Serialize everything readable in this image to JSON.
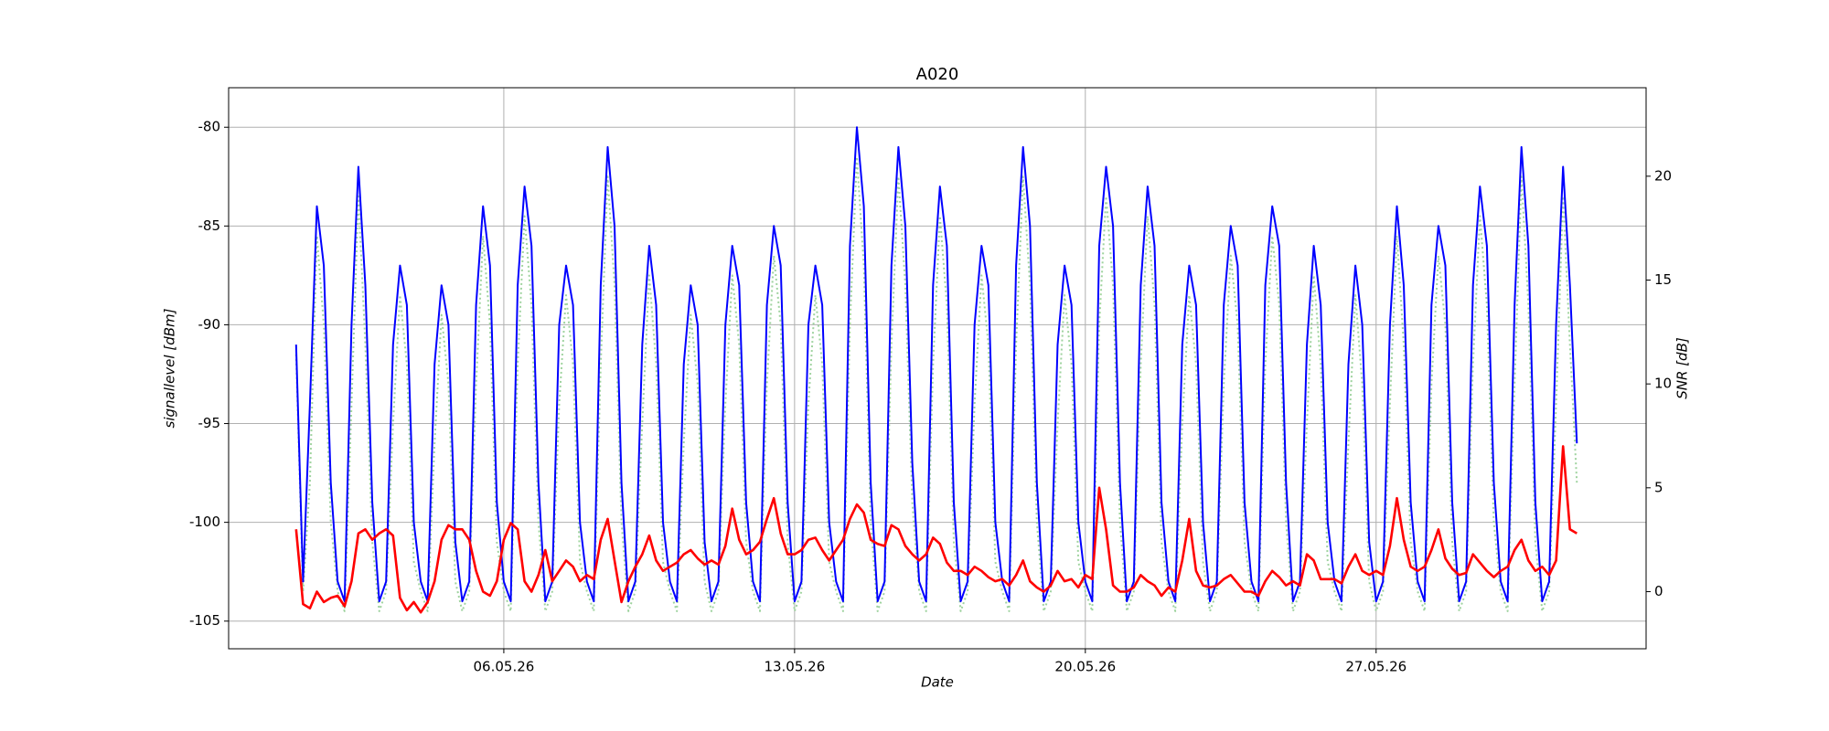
{
  "chart_data": {
    "type": "line",
    "title": "A020",
    "x_label": "Date",
    "y_label": "signallevel [dBm]",
    "y2_label": "SNR [dB]",
    "x": [
      "2026-05-01T00:00",
      "2026-05-01T04:00",
      "2026-05-01T08:00",
      "2026-05-01T12:00",
      "2026-05-01T16:00",
      "2026-05-01T20:00",
      "2026-05-02T00:00",
      "2026-05-02T04:00",
      "2026-05-02T08:00",
      "2026-05-02T12:00",
      "2026-05-02T16:00",
      "2026-05-02T20:00",
      "2026-05-03T00:00",
      "2026-05-03T04:00",
      "2026-05-03T08:00",
      "2026-05-03T12:00",
      "2026-05-03T16:00",
      "2026-05-03T20:00",
      "2026-05-04T00:00",
      "2026-05-04T04:00",
      "2026-05-04T08:00",
      "2026-05-04T12:00",
      "2026-05-04T16:00",
      "2026-05-04T20:00",
      "2026-05-05T00:00",
      "2026-05-05T04:00",
      "2026-05-05T08:00",
      "2026-05-05T12:00",
      "2026-05-05T16:00",
      "2026-05-05T20:00",
      "2026-05-06T00:00",
      "2026-05-06T04:00",
      "2026-05-06T08:00",
      "2026-05-06T12:00",
      "2026-05-06T16:00",
      "2026-05-06T20:00",
      "2026-05-07T00:00",
      "2026-05-07T04:00",
      "2026-05-07T08:00",
      "2026-05-07T12:00",
      "2026-05-07T16:00",
      "2026-05-07T20:00",
      "2026-05-08T00:00",
      "2026-05-08T04:00",
      "2026-05-08T08:00",
      "2026-05-08T12:00",
      "2026-05-08T16:00",
      "2026-05-08T20:00",
      "2026-05-09T00:00",
      "2026-05-09T04:00",
      "2026-05-09T08:00",
      "2026-05-09T12:00",
      "2026-05-09T16:00",
      "2026-05-09T20:00",
      "2026-05-10T00:00",
      "2026-05-10T04:00",
      "2026-05-10T08:00",
      "2026-05-10T12:00",
      "2026-05-10T16:00",
      "2026-05-10T20:00",
      "2026-05-11T00:00",
      "2026-05-11T04:00",
      "2026-05-11T08:00",
      "2026-05-11T12:00",
      "2026-05-11T16:00",
      "2026-05-11T20:00",
      "2026-05-12T00:00",
      "2026-05-12T04:00",
      "2026-05-12T08:00",
      "2026-05-12T12:00",
      "2026-05-12T16:00",
      "2026-05-12T20:00",
      "2026-05-13T00:00",
      "2026-05-13T04:00",
      "2026-05-13T08:00",
      "2026-05-13T12:00",
      "2026-05-13T16:00",
      "2026-05-13T20:00",
      "2026-05-14T00:00",
      "2026-05-14T04:00",
      "2026-05-14T08:00",
      "2026-05-14T12:00",
      "2026-05-14T16:00",
      "2026-05-14T20:00",
      "2026-05-15T00:00",
      "2026-05-15T04:00",
      "2026-05-15T08:00",
      "2026-05-15T12:00",
      "2026-05-15T16:00",
      "2026-05-15T20:00",
      "2026-05-16T00:00",
      "2026-05-16T04:00",
      "2026-05-16T08:00",
      "2026-05-16T12:00",
      "2026-05-16T16:00",
      "2026-05-16T20:00",
      "2026-05-17T00:00",
      "2026-05-17T04:00",
      "2026-05-17T08:00",
      "2026-05-17T12:00",
      "2026-05-17T16:00",
      "2026-05-17T20:00",
      "2026-05-18T00:00",
      "2026-05-18T04:00",
      "2026-05-18T08:00",
      "2026-05-18T12:00",
      "2026-05-18T16:00",
      "2026-05-18T20:00",
      "2026-05-19T00:00",
      "2026-05-19T04:00",
      "2026-05-19T08:00",
      "2026-05-19T12:00",
      "2026-05-19T16:00",
      "2026-05-19T20:00",
      "2026-05-20T00:00",
      "2026-05-20T04:00",
      "2026-05-20T08:00",
      "2026-05-20T12:00",
      "2026-05-20T16:00",
      "2026-05-20T20:00",
      "2026-05-21T00:00",
      "2026-05-21T04:00",
      "2026-05-21T08:00",
      "2026-05-21T12:00",
      "2026-05-21T16:00",
      "2026-05-21T20:00",
      "2026-05-22T00:00",
      "2026-05-22T04:00",
      "2026-05-22T08:00",
      "2026-05-22T12:00",
      "2026-05-22T16:00",
      "2026-05-22T20:00",
      "2026-05-23T00:00",
      "2026-05-23T04:00",
      "2026-05-23T08:00",
      "2026-05-23T12:00",
      "2026-05-23T16:00",
      "2026-05-23T20:00",
      "2026-05-24T00:00",
      "2026-05-24T04:00",
      "2026-05-24T08:00",
      "2026-05-24T12:00",
      "2026-05-24T16:00",
      "2026-05-24T20:00",
      "2026-05-25T00:00",
      "2026-05-25T04:00",
      "2026-05-25T08:00",
      "2026-05-25T12:00",
      "2026-05-25T16:00",
      "2026-05-25T20:00",
      "2026-05-26T00:00",
      "2026-05-26T04:00",
      "2026-05-26T08:00",
      "2026-05-26T12:00",
      "2026-05-26T16:00",
      "2026-05-26T20:00",
      "2026-05-27T00:00",
      "2026-05-27T04:00",
      "2026-05-27T08:00",
      "2026-05-27T12:00",
      "2026-05-27T16:00",
      "2026-05-27T20:00",
      "2026-05-28T00:00",
      "2026-05-28T04:00",
      "2026-05-28T08:00",
      "2026-05-28T12:00",
      "2026-05-28T16:00",
      "2026-05-28T20:00",
      "2026-05-29T00:00",
      "2026-05-29T04:00",
      "2026-05-29T08:00",
      "2026-05-29T12:00",
      "2026-05-29T16:00",
      "2026-05-29T20:00",
      "2026-05-30T00:00",
      "2026-05-30T04:00",
      "2026-05-30T08:00",
      "2026-05-30T12:00",
      "2026-05-30T16:00",
      "2026-05-30T20:00",
      "2026-05-31T00:00",
      "2026-05-31T04:00",
      "2026-05-31T08:00",
      "2026-05-31T12:00",
      "2026-05-31T16:00",
      "2026-05-31T20:00"
    ],
    "series": [
      {
        "color": "#9fd39f",
        "linestyle": "dotted",
        "values": [
          -91.5,
          -103.5,
          -98,
          -85.5,
          -90,
          -100,
          -103.5,
          -104.5,
          -94,
          -83.5,
          -91,
          -101,
          -104.5,
          -103.5,
          -95,
          -88.5,
          -92,
          -102,
          -103.5,
          -104.5,
          -96,
          -89.5,
          -93,
          -103,
          -104.5,
          -103.5,
          -93,
          -85.5,
          -90,
          -101,
          -103.5,
          -104.5,
          -92,
          -84.5,
          -89,
          -100,
          -104.5,
          -103.5,
          -94,
          -88.5,
          -92,
          -102,
          -103.5,
          -104.5,
          -92,
          -82.5,
          -88,
          -100,
          -104.5,
          -103.5,
          -95,
          -87.5,
          -92,
          -102,
          -103.5,
          -104.5,
          -96,
          -89.5,
          -93,
          -103,
          -104.5,
          -103.5,
          -94,
          -87.5,
          -91,
          -101,
          -103.5,
          -104.5,
          -93,
          -86.5,
          -90,
          -101,
          -104.5,
          -103.5,
          -94,
          -88.5,
          -92,
          -102,
          -103.5,
          -104.5,
          -90,
          -81.5,
          -87,
          -100,
          -104.5,
          -103.5,
          -91,
          -82.5,
          -88,
          -99,
          -103.5,
          -104.5,
          -92,
          -84.5,
          -89,
          -101,
          -104.5,
          -103.5,
          -94,
          -87.5,
          -91,
          -102,
          -103.5,
          -104.5,
          -91,
          -82.5,
          -88,
          -100,
          -104.5,
          -103.5,
          -95,
          -88.5,
          -92,
          -102,
          -103.5,
          -104.5,
          -90,
          -83.5,
          -88,
          -100,
          -104.5,
          -103.5,
          -92,
          -84.5,
          -89,
          -101,
          -103.5,
          -104.5,
          -95,
          -88.5,
          -92,
          -102,
          -104.5,
          -103.5,
          -93,
          -86.5,
          -90,
          -101,
          -103.5,
          -104.5,
          -92,
          -85.5,
          -89,
          -100,
          -104.5,
          -103.5,
          -95,
          -87.5,
          -92,
          -102,
          -103.5,
          -104.5,
          -96,
          -88.5,
          -93,
          -103,
          -104.5,
          -103.5,
          -94,
          -85.5,
          -91,
          -101,
          -103.5,
          -104.5,
          -93,
          -86.5,
          -90,
          -101,
          -104.5,
          -103.5,
          -92,
          -84.5,
          -89,
          -100,
          -103.5,
          -104.5,
          -93,
          -82.5,
          -89,
          -101,
          -104.5,
          -103.5,
          -94,
          -83.5,
          -91,
          -98
        ]
      },
      {
        "color": "#0000ff",
        "values": [
          -91,
          -103,
          -94,
          -84,
          -87,
          -98,
          -103,
          -104,
          -90,
          -82,
          -88,
          -99,
          -104,
          -103,
          -91,
          -87,
          -89,
          -100,
          -103,
          -104,
          -92,
          -88,
          -90,
          -101,
          -104,
          -103,
          -89,
          -84,
          -87,
          -99,
          -103,
          -104,
          -88,
          -83,
          -86,
          -98,
          -104,
          -103,
          -90,
          -87,
          -89,
          -100,
          -103,
          -104,
          -88,
          -81,
          -85,
          -98,
          -104,
          -103,
          -91,
          -86,
          -89,
          -100,
          -103,
          -104,
          -92,
          -88,
          -90,
          -101,
          -104,
          -103,
          -90,
          -86,
          -88,
          -99,
          -103,
          -104,
          -89,
          -85,
          -87,
          -99,
          -104,
          -103,
          -90,
          -87,
          -89,
          -100,
          -103,
          -104,
          -86,
          -80,
          -84,
          -98,
          -104,
          -103,
          -87,
          -81,
          -85,
          -97,
          -103,
          -104,
          -88,
          -83,
          -86,
          -99,
          -104,
          -103,
          -90,
          -86,
          -88,
          -100,
          -103,
          -104,
          -87,
          -81,
          -85,
          -98,
          -104,
          -103,
          -91,
          -87,
          -89,
          -100,
          -103,
          -104,
          -86,
          -82,
          -85,
          -98,
          -104,
          -103,
          -88,
          -83,
          -86,
          -99,
          -103,
          -104,
          -91,
          -87,
          -89,
          -100,
          -104,
          -103,
          -89,
          -85,
          -87,
          -99,
          -103,
          -104,
          -88,
          -84,
          -86,
          -98,
          -104,
          -103,
          -91,
          -86,
          -89,
          -100,
          -103,
          -104,
          -92,
          -87,
          -90,
          -101,
          -104,
          -103,
          -90,
          -84,
          -88,
          -99,
          -103,
          -104,
          -89,
          -85,
          -87,
          -99,
          -104,
          -103,
          -88,
          -83,
          -86,
          -98,
          -103,
          -104,
          -89,
          -81,
          -86,
          -99,
          -104,
          -103,
          -90,
          -82,
          -88,
          -96
        ]
      },
      {
        "color": "#ff0000",
        "axis": "y2",
        "values": [
          3,
          -0.6,
          -0.8,
          0,
          -0.5,
          -0.3,
          -0.2,
          -0.7,
          0.5,
          2.8,
          3,
          2.5,
          2.8,
          3,
          2.7,
          -0.3,
          -0.9,
          -0.5,
          -1,
          -0.5,
          0.5,
          2.5,
          3.2,
          3,
          3,
          2.5,
          1,
          0,
          -0.2,
          0.5,
          2.5,
          3.3,
          3,
          0.5,
          0,
          0.8,
          2,
          0.5,
          1,
          1.5,
          1.2,
          0.5,
          0.8,
          0.6,
          2.5,
          3.5,
          1.5,
          -0.5,
          0.5,
          1.2,
          1.8,
          2.7,
          1.5,
          1,
          1.2,
          1.4,
          1.8,
          2,
          1.6,
          1.3,
          1.5,
          1.3,
          2.2,
          4,
          2.5,
          1.8,
          2,
          2.4,
          3.5,
          4.5,
          2.8,
          1.8,
          1.8,
          2,
          2.5,
          2.6,
          2,
          1.5,
          2,
          2.5,
          3.5,
          4.2,
          3.8,
          2.5,
          2.3,
          2.2,
          3.2,
          3,
          2.2,
          1.8,
          1.5,
          1.8,
          2.6,
          2.3,
          1.4,
          1,
          1,
          0.8,
          1.2,
          1,
          0.7,
          0.5,
          0.6,
          0.3,
          0.8,
          1.5,
          0.5,
          0.2,
          0,
          0.3,
          1,
          0.5,
          0.6,
          0.2,
          0.8,
          0.6,
          5,
          3,
          0.3,
          0,
          0,
          0.2,
          0.8,
          0.5,
          0.3,
          -0.2,
          0.2,
          0,
          1.5,
          3.5,
          1,
          0.3,
          0.2,
          0.3,
          0.6,
          0.8,
          0.4,
          0,
          0,
          -0.2,
          0.5,
          1,
          0.7,
          0.3,
          0.5,
          0.3,
          1.8,
          1.5,
          0.6,
          0.6,
          0.6,
          0.4,
          1.2,
          1.8,
          1,
          0.8,
          1,
          0.8,
          2.2,
          4.5,
          2.5,
          1.2,
          1,
          1.2,
          2,
          3,
          1.6,
          1.1,
          0.8,
          0.9,
          1.8,
          1.4,
          1,
          0.7,
          1,
          1.2,
          2,
          2.5,
          1.5,
          1,
          1.2,
          0.8,
          1.5,
          7,
          3,
          2.8
        ]
      }
    ],
    "xlim": [
      "2026-04-29T09:00",
      "2026-06-02T12:00"
    ],
    "xticks": [
      {
        "value": "2026-05-06T00:00",
        "label": "06.05.26"
      },
      {
        "value": "2026-05-13T00:00",
        "label": "13.05.26"
      },
      {
        "value": "2026-05-20T00:00",
        "label": "20.05.26"
      },
      {
        "value": "2026-05-27T00:00",
        "label": "27.05.26"
      }
    ],
    "ylim": [
      -106.4,
      -78
    ],
    "yticks": [
      -105,
      -100,
      -95,
      -90,
      -85,
      -80
    ],
    "y2lim": [
      -2.75,
      24.26
    ],
    "y2ticks": [
      0,
      5,
      10,
      15,
      20
    ],
    "grid": true
  }
}
